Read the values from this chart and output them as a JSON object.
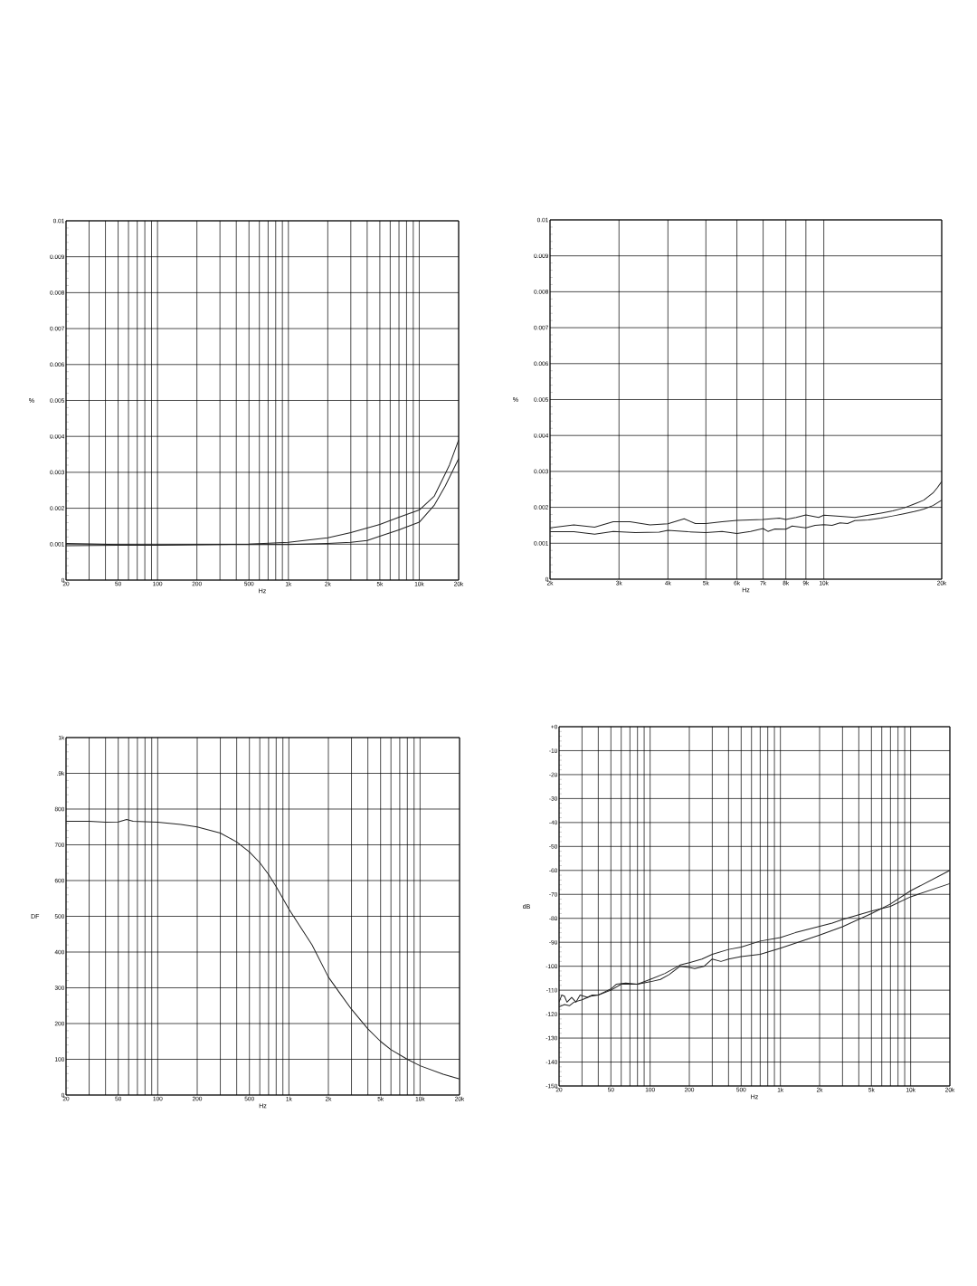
{
  "chart_data": [
    {
      "type": "line",
      "xlabel": "Hz",
      "ylabel": "%",
      "log": "x",
      "grid": true,
      "xlim": [
        20,
        20000
      ],
      "ylim": [
        0,
        0.01
      ],
      "xticks": [
        20,
        50,
        100,
        200,
        500,
        {
          "value": 1000,
          "label": "1k"
        },
        {
          "value": 2000,
          "label": "2k"
        },
        {
          "value": 5000,
          "label": "5k"
        },
        {
          "value": 10000,
          "label": "10k"
        },
        {
          "value": 20000,
          "label": "20k"
        }
      ],
      "yticks": [
        0,
        0.001,
        0.002,
        0.003,
        0.004,
        0.005,
        0.006,
        0.007,
        0.008,
        0.009,
        0.01
      ],
      "series": [
        {
          "color": "#222222",
          "x": [
            20,
            50,
            100,
            200,
            500,
            1000,
            2000,
            3000,
            5000,
            7000,
            10000,
            13000,
            15800,
            17000,
            20000
          ],
          "values": [
            0.00102,
            0.00099,
            0.00098,
            0.00099,
            0.001,
            0.00105,
            0.00118,
            0.00132,
            0.00155,
            0.00175,
            0.00195,
            0.00233,
            0.00296,
            0.0032,
            0.0039
          ]
        },
        {
          "color": "#222222",
          "x": [
            20,
            50,
            100,
            200,
            500,
            1000,
            2000,
            3000,
            4000,
            5000,
            7000,
            8000,
            10000,
            13000,
            15800,
            20000
          ],
          "values": [
            0.00096,
            0.00097,
            0.00097,
            0.00098,
            0.00099,
            0.00099,
            0.00102,
            0.00105,
            0.0011,
            0.00122,
            0.0014,
            0.00148,
            0.00161,
            0.00208,
            0.00262,
            0.00338
          ]
        }
      ]
    },
    {
      "type": "line",
      "xlabel": "Hz",
      "ylabel": "%",
      "log": "x",
      "grid": true,
      "xlim": [
        2000,
        20000
      ],
      "ylim": [
        0,
        0.01
      ],
      "xticks": [
        {
          "value": 2000,
          "label": "2k"
        },
        {
          "value": 3000,
          "label": "3k"
        },
        {
          "value": 4000,
          "label": "4k"
        },
        {
          "value": 5000,
          "label": "5k"
        },
        {
          "value": 6000,
          "label": "6k"
        },
        {
          "value": 7000,
          "label": "7k"
        },
        {
          "value": 8000,
          "label": "8k"
        },
        {
          "value": 9000,
          "label": "9k"
        },
        {
          "value": 10000,
          "label": "10k"
        },
        {
          "value": 20000,
          "label": "20k"
        }
      ],
      "yticks": [
        0,
        0.001,
        0.002,
        0.003,
        0.004,
        0.005,
        0.006,
        0.007,
        0.008,
        0.009,
        0.01
      ],
      "series": [
        {
          "color": "#222222",
          "x": [
            2000,
            2300,
            2600,
            2900,
            3200,
            3600,
            4000,
            4400,
            4700,
            5000,
            5500,
            6000,
            7000,
            7700,
            8000,
            8500,
            9000,
            9700,
            10000,
            11000,
            12000,
            13000,
            14000,
            15000,
            16000,
            17000,
            18000,
            19000,
            19500,
            20000
          ],
          "values": [
            0.00143,
            0.00151,
            0.00145,
            0.0016,
            0.0016,
            0.00151,
            0.00154,
            0.00168,
            0.00155,
            0.00155,
            0.0016,
            0.00164,
            0.00166,
            0.0017,
            0.00166,
            0.00172,
            0.00179,
            0.00172,
            0.00178,
            0.00175,
            0.00172,
            0.00178,
            0.00184,
            0.0019,
            0.00198,
            0.00209,
            0.0022,
            0.0024,
            0.00255,
            0.00272
          ]
        },
        {
          "color": "#222222",
          "x": [
            2000,
            2300,
            2600,
            2900,
            3300,
            3800,
            4000,
            4500,
            5000,
            5500,
            6000,
            6500,
            7000,
            7200,
            7500,
            8000,
            8300,
            9000,
            9500,
            10000,
            10500,
            11000,
            11500,
            12000,
            13000,
            14000,
            15000,
            16000,
            17000,
            18000,
            19000,
            20000
          ],
          "values": [
            0.00132,
            0.00132,
            0.00125,
            0.00133,
            0.0013,
            0.00131,
            0.00136,
            0.00132,
            0.0013,
            0.00133,
            0.00127,
            0.00133,
            0.00141,
            0.00133,
            0.0014,
            0.00139,
            0.00148,
            0.00143,
            0.0015,
            0.00152,
            0.0015,
            0.00157,
            0.00155,
            0.00163,
            0.00165,
            0.0017,
            0.00176,
            0.00182,
            0.00188,
            0.00195,
            0.00205,
            0.0022
          ]
        }
      ]
    },
    {
      "type": "line",
      "xlabel": "Hz",
      "ylabel": "DF",
      "log": "x",
      "grid": true,
      "xlim": [
        20,
        20000
      ],
      "ylim": [
        0,
        1000
      ],
      "xticks": [
        20,
        50,
        100,
        200,
        500,
        {
          "value": 1000,
          "label": "1k"
        },
        {
          "value": 2000,
          "label": "2k"
        },
        {
          "value": 5000,
          "label": "5k"
        },
        {
          "value": 10000,
          "label": "10k"
        },
        {
          "value": 20000,
          "label": "20k"
        }
      ],
      "yticks": [
        0,
        100,
        200,
        300,
        400,
        500,
        600,
        700,
        800,
        {
          "value": 900,
          "label": ".9k"
        },
        {
          "value": 1000,
          "label": "1k"
        }
      ],
      "series": [
        {
          "color": "#222222",
          "x": [
            20,
            30,
            40,
            50,
            58,
            65,
            100,
            150,
            200,
            300,
            400,
            500,
            600,
            700,
            800,
            1000,
            1500,
            2000,
            2500,
            3000,
            4000,
            5000,
            6000,
            8000,
            10000,
            15000,
            20000
          ],
          "values": [
            766,
            766,
            763,
            764,
            771,
            766,
            763,
            757,
            750,
            733,
            708,
            680,
            650,
            617,
            583,
            520,
            420,
            330,
            280,
            240,
            185,
            150,
            127,
            100,
            82,
            58,
            45
          ]
        }
      ]
    },
    {
      "type": "line",
      "xlabel": "Hz",
      "ylabel": "dB",
      "log": "x",
      "grid": true,
      "xlim": [
        20,
        20000
      ],
      "ylim": [
        -150,
        0
      ],
      "xticks": [
        20,
        50,
        100,
        200,
        500,
        {
          "value": 1000,
          "label": "1k"
        },
        {
          "value": 2000,
          "label": "2k"
        },
        {
          "value": 5000,
          "label": "5k"
        },
        {
          "value": 10000,
          "label": "10k"
        },
        {
          "value": 20000,
          "label": "20k"
        }
      ],
      "yticks": [
        -150,
        -140,
        -130,
        -120,
        -110,
        -100,
        -90,
        -80,
        -70,
        -60,
        -50,
        -40,
        -30,
        -20,
        -10,
        {
          "value": 0,
          "label": "+0"
        }
      ],
      "series": [
        {
          "color": "#222222",
          "x": [
            20,
            22,
            24,
            26,
            30,
            35,
            40,
            50,
            55,
            65,
            80,
            100,
            120,
            140,
            170,
            200,
            220,
            260,
            300,
            350,
            400,
            500,
            700,
            1000,
            2000,
            3000,
            5000,
            7000,
            10000,
            20000
          ],
          "values": [
            -117,
            -116,
            -116.5,
            -115,
            -114,
            -112.5,
            -112,
            -109.5,
            -107.5,
            -107,
            -107.5,
            -106.5,
            -105.5,
            -103.5,
            -100,
            -100.5,
            -101,
            -100,
            -97,
            -98,
            -97,
            -96,
            -95,
            -92.5,
            -87,
            -83.5,
            -78,
            -74,
            -68.5,
            -60
          ]
        },
        {
          "color": "#222222",
          "x": [
            20,
            21,
            22,
            23,
            25,
            27,
            29,
            33,
            36,
            40,
            50,
            60,
            80,
            100,
            130,
            170,
            200,
            250,
            300,
            400,
            500,
            700,
            1000,
            1300,
            2500,
            3000,
            5000,
            7000,
            10000,
            20000
          ],
          "values": [
            -115,
            -112,
            -112.5,
            -115,
            -113,
            -115,
            -112,
            -113,
            -112,
            -112,
            -110,
            -107.5,
            -107.5,
            -105.5,
            -103,
            -99.5,
            -98.5,
            -97,
            -95,
            -93,
            -92,
            -89.5,
            -88,
            -86,
            -82,
            -80.5,
            -77,
            -75,
            -71,
            -65.5
          ]
        }
      ]
    }
  ]
}
